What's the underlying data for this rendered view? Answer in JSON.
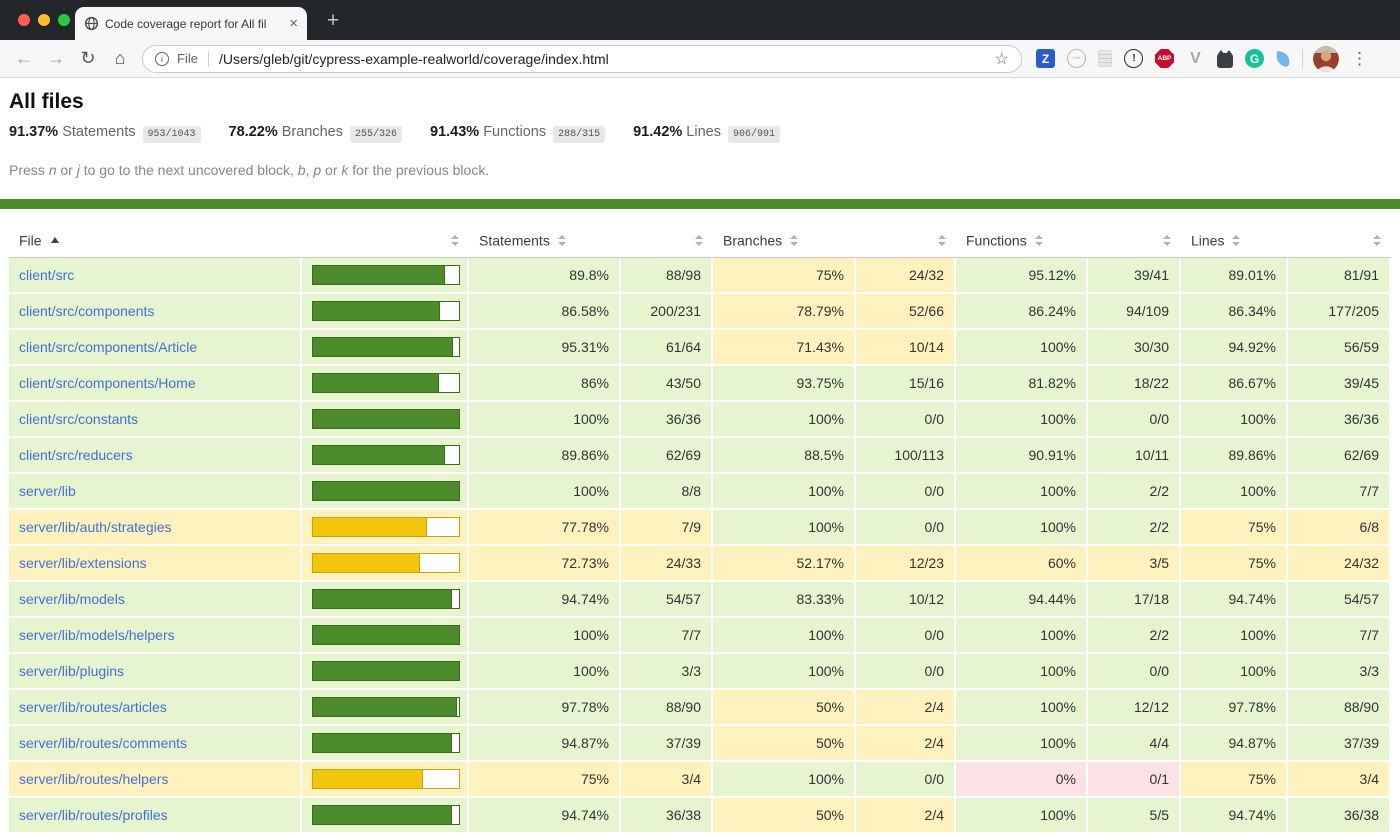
{
  "browser": {
    "tab_title": "Code coverage report for All fil",
    "close_glyph": "×",
    "new_tab_glyph": "+",
    "back_glyph": "←",
    "forward_glyph": "→",
    "reload_glyph": "↻",
    "home_glyph": "⌂",
    "info_glyph": "i",
    "star_glyph": "☆",
    "menu_glyph": "⋮",
    "url_scheme_label": "File",
    "url_path": "/Users/gleb/git/cypress-example-realworld/coverage/index.html",
    "extensions": [
      {
        "name": "zoom-extension-icon",
        "kind": "square",
        "label": "Z",
        "bg": "#2d5bc8",
        "fg": "#ffffff"
      },
      {
        "name": "dots-circle-extension-icon",
        "kind": "circle-outline",
        "label": "···",
        "fg": "#b4b8bc"
      },
      {
        "name": "page-extension-icon",
        "kind": "page",
        "label": ""
      },
      {
        "name": "exclamation-circle-extension-icon",
        "kind": "circle-outline",
        "label": "!",
        "fg": "#2b2e32"
      },
      {
        "name": "abp-adblock-extension-icon",
        "kind": "octagon",
        "label": "ABP",
        "bg": "#c70d2c",
        "fg": "#ffffff"
      },
      {
        "name": "v-extension-icon",
        "kind": "text",
        "label": "V",
        "fg": "#a2a7ad"
      },
      {
        "name": "robot-extension-icon",
        "kind": "robot",
        "label": "",
        "bg": "#3a3f44"
      },
      {
        "name": "grammarly-extension-icon",
        "kind": "circle",
        "label": "G",
        "bg": "#15c39a",
        "fg": "#ffffff"
      },
      {
        "name": "feather-extension-icon",
        "kind": "feather",
        "label": "",
        "bg": "#74b6e8"
      }
    ]
  },
  "colors": {
    "high_bg": "#e6f5d0",
    "medium_bg": "#fdf1bd",
    "low_bg": "#fce1e5",
    "bar_high_fill": "#4c8b2b",
    "bar_high_border": "#376d17",
    "bar_medium_fill": "#f2c60d",
    "bar_medium_border": "#c7a208",
    "status_line": "#4c8b2b",
    "link": "#4270d6"
  },
  "page": {
    "title": "All files",
    "summary": [
      {
        "pct": "91.37%",
        "label": "Statements",
        "fraction": "953/1043"
      },
      {
        "pct": "78.22%",
        "label": "Branches",
        "fraction": "255/326"
      },
      {
        "pct": "91.43%",
        "label": "Functions",
        "fraction": "288/315"
      },
      {
        "pct": "91.42%",
        "label": "Lines",
        "fraction": "906/991"
      }
    ],
    "hint_parts": [
      {
        "t": "Press "
      },
      {
        "t": "n",
        "i": true
      },
      {
        "t": " or "
      },
      {
        "t": "j",
        "i": true
      },
      {
        "t": " to go to the next uncovered block, "
      },
      {
        "t": "b",
        "i": true
      },
      {
        "t": ", "
      },
      {
        "t": "p",
        "i": true
      },
      {
        "t": " or "
      },
      {
        "t": "k",
        "i": true
      },
      {
        "t": " for the previous block."
      }
    ],
    "table": {
      "columns": [
        {
          "label": "File",
          "sort": "asc"
        },
        {
          "label": ""
        },
        {
          "label": "Statements"
        },
        {
          "label": ""
        },
        {
          "label": "Branches"
        },
        {
          "label": ""
        },
        {
          "label": "Functions"
        },
        {
          "label": ""
        },
        {
          "label": "Lines"
        },
        {
          "label": ""
        }
      ],
      "rows": [
        {
          "file": "client/src",
          "file_level": "high",
          "bar": {
            "pct": 89.8,
            "level": "high"
          },
          "statements": {
            "pct": "89.8%",
            "frac": "88/98",
            "level": "high"
          },
          "branches": {
            "pct": "75%",
            "frac": "24/32",
            "level": "medium"
          },
          "functions": {
            "pct": "95.12%",
            "frac": "39/41",
            "level": "high"
          },
          "lines": {
            "pct": "89.01%",
            "frac": "81/91",
            "level": "high"
          }
        },
        {
          "file": "client/src/components",
          "file_level": "high",
          "bar": {
            "pct": 86.58,
            "level": "high"
          },
          "statements": {
            "pct": "86.58%",
            "frac": "200/231",
            "level": "high"
          },
          "branches": {
            "pct": "78.79%",
            "frac": "52/66",
            "level": "medium"
          },
          "functions": {
            "pct": "86.24%",
            "frac": "94/109",
            "level": "high"
          },
          "lines": {
            "pct": "86.34%",
            "frac": "177/205",
            "level": "high"
          }
        },
        {
          "file": "client/src/components/Article",
          "file_level": "high",
          "bar": {
            "pct": 95.31,
            "level": "high"
          },
          "statements": {
            "pct": "95.31%",
            "frac": "61/64",
            "level": "high"
          },
          "branches": {
            "pct": "71.43%",
            "frac": "10/14",
            "level": "medium"
          },
          "functions": {
            "pct": "100%",
            "frac": "30/30",
            "level": "high"
          },
          "lines": {
            "pct": "94.92%",
            "frac": "56/59",
            "level": "high"
          }
        },
        {
          "file": "client/src/components/Home",
          "file_level": "high",
          "bar": {
            "pct": 86,
            "level": "high"
          },
          "statements": {
            "pct": "86%",
            "frac": "43/50",
            "level": "high"
          },
          "branches": {
            "pct": "93.75%",
            "frac": "15/16",
            "level": "high"
          },
          "functions": {
            "pct": "81.82%",
            "frac": "18/22",
            "level": "high"
          },
          "lines": {
            "pct": "86.67%",
            "frac": "39/45",
            "level": "high"
          }
        },
        {
          "file": "client/src/constants",
          "file_level": "high",
          "bar": {
            "pct": 100,
            "level": "high"
          },
          "statements": {
            "pct": "100%",
            "frac": "36/36",
            "level": "high"
          },
          "branches": {
            "pct": "100%",
            "frac": "0/0",
            "level": "high"
          },
          "functions": {
            "pct": "100%",
            "frac": "0/0",
            "level": "high"
          },
          "lines": {
            "pct": "100%",
            "frac": "36/36",
            "level": "high"
          }
        },
        {
          "file": "client/src/reducers",
          "file_level": "high",
          "bar": {
            "pct": 89.86,
            "level": "high"
          },
          "statements": {
            "pct": "89.86%",
            "frac": "62/69",
            "level": "high"
          },
          "branches": {
            "pct": "88.5%",
            "frac": "100/113",
            "level": "high"
          },
          "functions": {
            "pct": "90.91%",
            "frac": "10/11",
            "level": "high"
          },
          "lines": {
            "pct": "89.86%",
            "frac": "62/69",
            "level": "high"
          }
        },
        {
          "file": "server/lib",
          "file_level": "high",
          "bar": {
            "pct": 100,
            "level": "high"
          },
          "statements": {
            "pct": "100%",
            "frac": "8/8",
            "level": "high"
          },
          "branches": {
            "pct": "100%",
            "frac": "0/0",
            "level": "high"
          },
          "functions": {
            "pct": "100%",
            "frac": "2/2",
            "level": "high"
          },
          "lines": {
            "pct": "100%",
            "frac": "7/7",
            "level": "high"
          }
        },
        {
          "file": "server/lib/auth/strategies",
          "file_level": "medium",
          "bar": {
            "pct": 77.78,
            "level": "medium"
          },
          "statements": {
            "pct": "77.78%",
            "frac": "7/9",
            "level": "medium"
          },
          "branches": {
            "pct": "100%",
            "frac": "0/0",
            "level": "high"
          },
          "functions": {
            "pct": "100%",
            "frac": "2/2",
            "level": "high"
          },
          "lines": {
            "pct": "75%",
            "frac": "6/8",
            "level": "medium"
          }
        },
        {
          "file": "server/lib/extensions",
          "file_level": "medium",
          "bar": {
            "pct": 72.73,
            "level": "medium"
          },
          "statements": {
            "pct": "72.73%",
            "frac": "24/33",
            "level": "medium"
          },
          "branches": {
            "pct": "52.17%",
            "frac": "12/23",
            "level": "medium"
          },
          "functions": {
            "pct": "60%",
            "frac": "3/5",
            "level": "medium"
          },
          "lines": {
            "pct": "75%",
            "frac": "24/32",
            "level": "medium"
          }
        },
        {
          "file": "server/lib/models",
          "file_level": "high",
          "bar": {
            "pct": 94.74,
            "level": "high"
          },
          "statements": {
            "pct": "94.74%",
            "frac": "54/57",
            "level": "high"
          },
          "branches": {
            "pct": "83.33%",
            "frac": "10/12",
            "level": "high"
          },
          "functions": {
            "pct": "94.44%",
            "frac": "17/18",
            "level": "high"
          },
          "lines": {
            "pct": "94.74%",
            "frac": "54/57",
            "level": "high"
          }
        },
        {
          "file": "server/lib/models/helpers",
          "file_level": "high",
          "bar": {
            "pct": 100,
            "level": "high"
          },
          "statements": {
            "pct": "100%",
            "frac": "7/7",
            "level": "high"
          },
          "branches": {
            "pct": "100%",
            "frac": "0/0",
            "level": "high"
          },
          "functions": {
            "pct": "100%",
            "frac": "2/2",
            "level": "high"
          },
          "lines": {
            "pct": "100%",
            "frac": "7/7",
            "level": "high"
          }
        },
        {
          "file": "server/lib/plugins",
          "file_level": "high",
          "bar": {
            "pct": 100,
            "level": "high"
          },
          "statements": {
            "pct": "100%",
            "frac": "3/3",
            "level": "high"
          },
          "branches": {
            "pct": "100%",
            "frac": "0/0",
            "level": "high"
          },
          "functions": {
            "pct": "100%",
            "frac": "0/0",
            "level": "high"
          },
          "lines": {
            "pct": "100%",
            "frac": "3/3",
            "level": "high"
          }
        },
        {
          "file": "server/lib/routes/articles",
          "file_level": "high",
          "bar": {
            "pct": 97.78,
            "level": "high"
          },
          "statements": {
            "pct": "97.78%",
            "frac": "88/90",
            "level": "high"
          },
          "branches": {
            "pct": "50%",
            "frac": "2/4",
            "level": "medium"
          },
          "functions": {
            "pct": "100%",
            "frac": "12/12",
            "level": "high"
          },
          "lines": {
            "pct": "97.78%",
            "frac": "88/90",
            "level": "high"
          }
        },
        {
          "file": "server/lib/routes/comments",
          "file_level": "high",
          "bar": {
            "pct": 94.87,
            "level": "high"
          },
          "statements": {
            "pct": "94.87%",
            "frac": "37/39",
            "level": "high"
          },
          "branches": {
            "pct": "50%",
            "frac": "2/4",
            "level": "medium"
          },
          "functions": {
            "pct": "100%",
            "frac": "4/4",
            "level": "high"
          },
          "lines": {
            "pct": "94.87%",
            "frac": "37/39",
            "level": "high"
          }
        },
        {
          "file": "server/lib/routes/helpers",
          "file_level": "medium",
          "bar": {
            "pct": 75,
            "level": "medium"
          },
          "statements": {
            "pct": "75%",
            "frac": "3/4",
            "level": "medium"
          },
          "branches": {
            "pct": "100%",
            "frac": "0/0",
            "level": "high"
          },
          "functions": {
            "pct": "0%",
            "frac": "0/1",
            "level": "low"
          },
          "lines": {
            "pct": "75%",
            "frac": "3/4",
            "level": "medium"
          }
        },
        {
          "file": "server/lib/routes/profiles",
          "file_level": "high",
          "bar": {
            "pct": 94.74,
            "level": "high"
          },
          "statements": {
            "pct": "94.74%",
            "frac": "36/38",
            "level": "high"
          },
          "branches": {
            "pct": "50%",
            "frac": "2/4",
            "level": "medium"
          },
          "functions": {
            "pct": "100%",
            "frac": "5/5",
            "level": "high"
          },
          "lines": {
            "pct": "94.74%",
            "frac": "36/38",
            "level": "high"
          }
        }
      ]
    }
  }
}
